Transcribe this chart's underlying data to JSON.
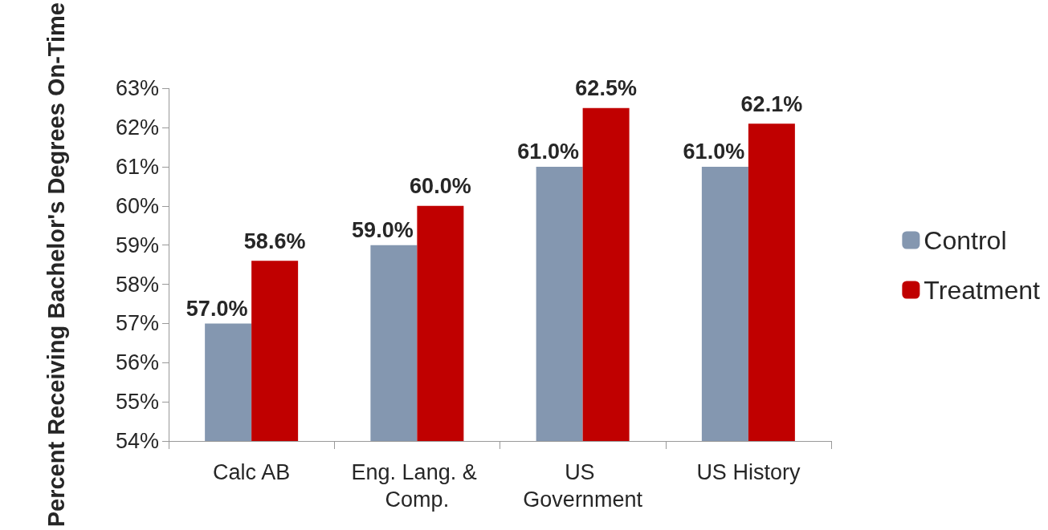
{
  "chart_data": {
    "type": "bar",
    "ylabel": "Percent Receiving Bachelor's Degrees On-Time",
    "categories": [
      "Calc AB",
      "Eng. Lang. & Comp.",
      "US Government",
      "US History"
    ],
    "series": [
      {
        "name": "Control",
        "color": "#8497b0",
        "values": [
          57.0,
          59.0,
          61.0,
          61.0
        ],
        "value_labels": [
          "57.0%",
          "59.0%",
          "61.0%",
          "61.0%"
        ]
      },
      {
        "name": "Treatment",
        "color": "#c00000",
        "values": [
          58.6,
          60.0,
          62.5,
          62.1
        ],
        "value_labels": [
          "58.6%",
          "60.0%",
          "62.5%",
          "62.1%"
        ]
      }
    ],
    "ylim": [
      54,
      63
    ],
    "yticks": [
      {
        "value": 54,
        "label": "54%"
      },
      {
        "value": 55,
        "label": "55%"
      },
      {
        "value": 56,
        "label": "56%"
      },
      {
        "value": 57,
        "label": "57%"
      },
      {
        "value": 58,
        "label": "58%"
      },
      {
        "value": 59,
        "label": "59%"
      },
      {
        "value": 60,
        "label": "60%"
      },
      {
        "value": 61,
        "label": "61%"
      },
      {
        "value": 62,
        "label": "62%"
      },
      {
        "value": 63,
        "label": "63%"
      }
    ],
    "grid": false,
    "legend": "right"
  }
}
